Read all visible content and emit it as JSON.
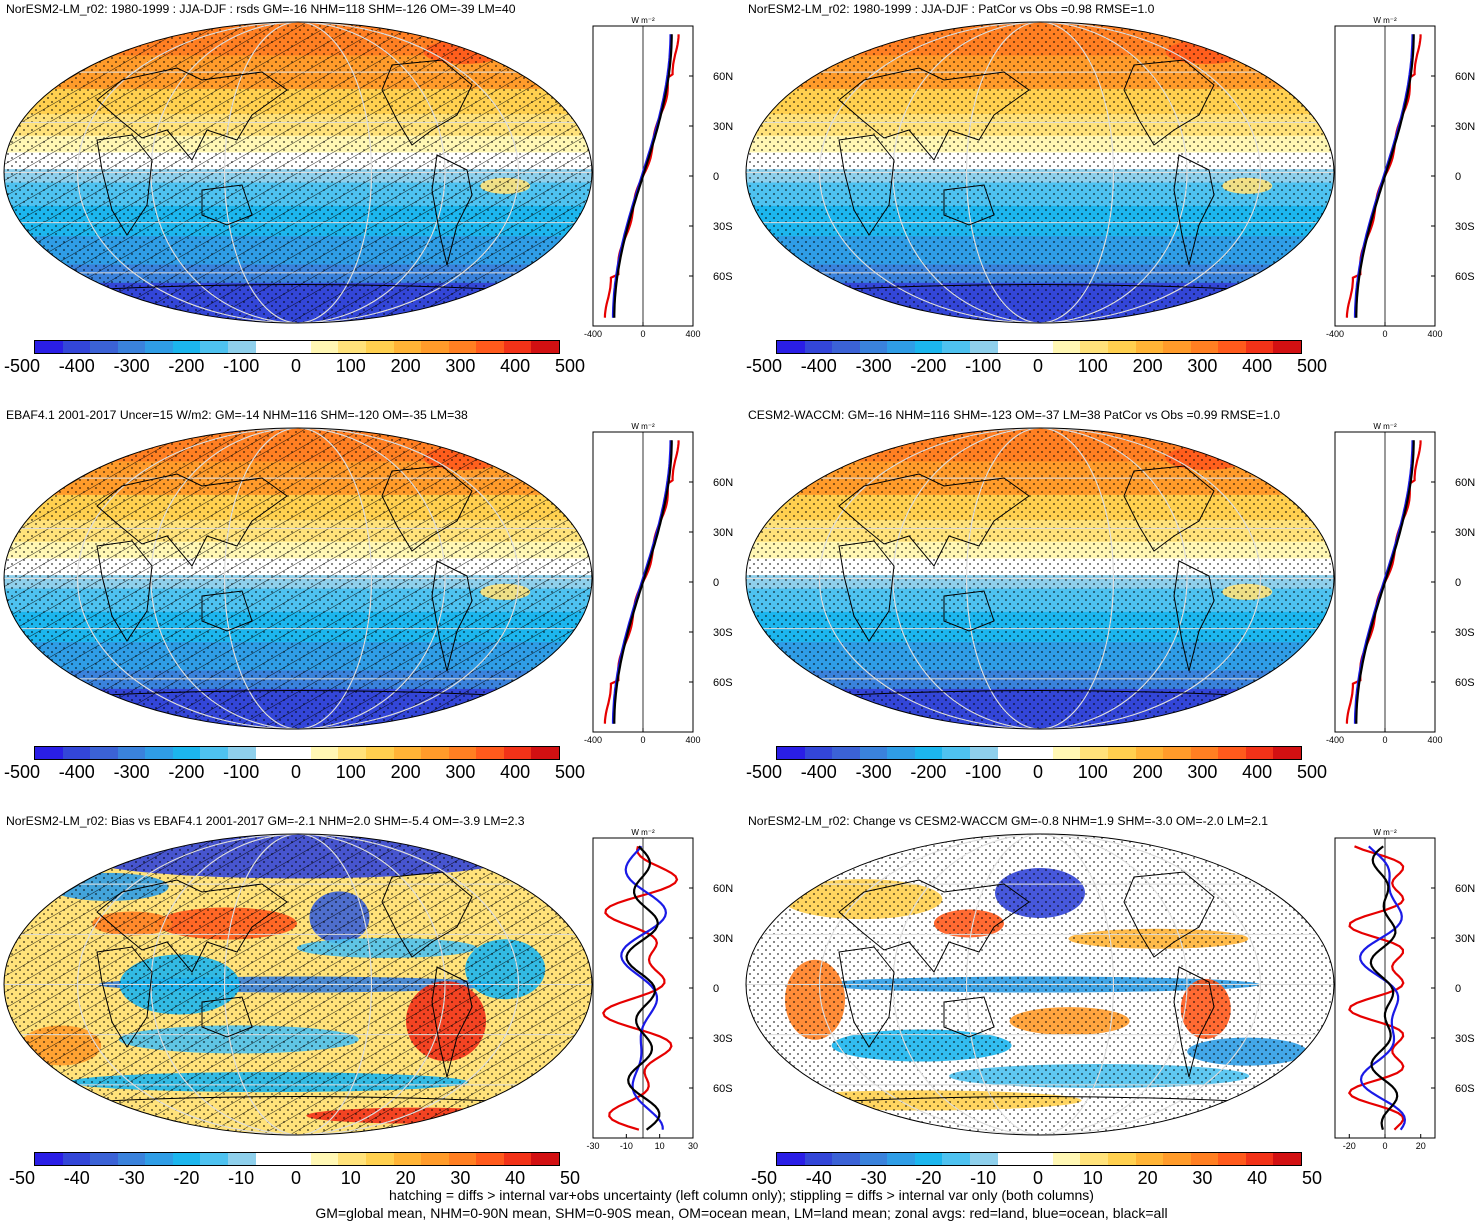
{
  "colors": {
    "scale": [
      "#2a1ee6",
      "#3346d8",
      "#3b62d6",
      "#3a82dc",
      "#2f9de6",
      "#1cb6ee",
      "#4ec2f0",
      "#8fd0ec",
      "#ffffff",
      "#ffffff",
      "#fff7b4",
      "#ffe27a",
      "#ffd04f",
      "#ffb436",
      "#ff9b2a",
      "#ff7f22",
      "#ff5a1c",
      "#f23218",
      "#d21012"
    ],
    "land_line": "#000000",
    "zonal_land": "#e60000",
    "zonal_ocean": "#1a1ae6",
    "zonal_all": "#000000"
  },
  "panels": [
    {
      "id": "norESM-clim",
      "title": "NorESM2-LM_r02: 1980-1999 : JJA-DJF : rsds GM=-16 NHM=118 SHM=-126 OM=-39 LM=40",
      "pattern": "clim",
      "hatch": true,
      "colorbar_labels": [
        "-500",
        "-400",
        "-300",
        "-200",
        "-100",
        "0",
        "100",
        "200",
        "300",
        "400",
        "500"
      ],
      "zonal": {
        "unit": "W m⁻²",
        "xticks": [
          "-400",
          "0",
          "400"
        ],
        "lat_labels": [
          "60N",
          "30N",
          "0",
          "30S",
          "60S"
        ],
        "xlim": [
          -400,
          400
        ]
      }
    },
    {
      "id": "norESM-clim-patcor",
      "title": "NorESM2-LM_r02: 1980-1999 : JJA-DJF : PatCor vs Obs =0.98 RMSE=1.0",
      "pattern": "clim",
      "hatch": false,
      "colorbar_labels": [
        "-500",
        "-400",
        "-300",
        "-200",
        "-100",
        "0",
        "100",
        "200",
        "300",
        "400",
        "500"
      ],
      "zonal": {
        "unit": "W m⁻²",
        "xticks": [
          "-400",
          "0",
          "400"
        ],
        "lat_labels": [
          "60N",
          "30N",
          "0",
          "30S",
          "60S"
        ],
        "xlim": [
          -400,
          400
        ]
      }
    },
    {
      "id": "ebaf",
      "title": "EBAF4.1 2001-2017 Uncer=15 W/m2: GM=-14 NHM=116 SHM=-120 OM=-35 LM=38",
      "pattern": "clim",
      "hatch": true,
      "colorbar_labels": [
        "-500",
        "-400",
        "-300",
        "-200",
        "-100",
        "0",
        "100",
        "200",
        "300",
        "400",
        "500"
      ],
      "zonal": {
        "unit": "W m⁻²",
        "xticks": [
          "-400",
          "0",
          "400"
        ],
        "lat_labels": [
          "60N",
          "30N",
          "0",
          "30S",
          "60S"
        ],
        "xlim": [
          -400,
          400
        ]
      }
    },
    {
      "id": "cesm",
      "title": "CESM2-WACCM: GM=-16 NHM=116 SHM=-123 OM=-37 LM=38 PatCor vs Obs =0.99 RMSE=1.0",
      "pattern": "clim",
      "hatch": false,
      "colorbar_labels": [
        "-500",
        "-400",
        "-300",
        "-200",
        "-100",
        "0",
        "100",
        "200",
        "300",
        "400",
        "500"
      ],
      "zonal": {
        "unit": "W m⁻²",
        "xticks": [
          "-400",
          "0",
          "400"
        ],
        "lat_labels": [
          "60N",
          "30N",
          "0",
          "30S",
          "60S"
        ],
        "xlim": [
          -400,
          400
        ]
      }
    },
    {
      "id": "bias",
      "title": "NorESM2-LM_r02: Bias vs EBAF4.1 2001-2017 GM=-2.1 NHM=2.0 SHM=-5.4 OM=-3.9 LM=2.3",
      "pattern": "bias",
      "hatch": true,
      "colorbar_labels": [
        "-50",
        "-40",
        "-30",
        "-20",
        "-10",
        "0",
        "10",
        "20",
        "30",
        "40",
        "50"
      ],
      "zonal": {
        "unit": "W m⁻²",
        "xticks": [
          "-30",
          "-10",
          "10",
          "30"
        ],
        "lat_labels": [
          "60N",
          "30N",
          "0",
          "30S",
          "60S"
        ],
        "xlim": [
          -30,
          30
        ]
      }
    },
    {
      "id": "change",
      "title": "NorESM2-LM_r02: Change vs CESM2-WACCM GM=-0.8 NHM=1.9 SHM=-3.0 OM=-2.0 LM=2.1",
      "pattern": "change",
      "hatch": false,
      "colorbar_labels": [
        "-50",
        "-40",
        "-30",
        "-20",
        "-10",
        "0",
        "10",
        "20",
        "30",
        "40",
        "50"
      ],
      "zonal": {
        "unit": "W m⁻²",
        "xticks": [
          "-20",
          "0",
          "20"
        ],
        "lat_labels": [
          "60N",
          "30N",
          "0",
          "30S",
          "60S"
        ],
        "xlim": [
          -28,
          28
        ]
      }
    }
  ],
  "footer": {
    "line1": "hatching = diffs > internal var+obs uncertainty (left column only); stippling = diffs > internal var only (both columns)",
    "line2": "GM=global mean, NHM=0-90N mean, SHM=0-90S mean, OM=ocean mean, LM=land mean; zonal avgs: red=land, blue=ocean, black=all"
  }
}
